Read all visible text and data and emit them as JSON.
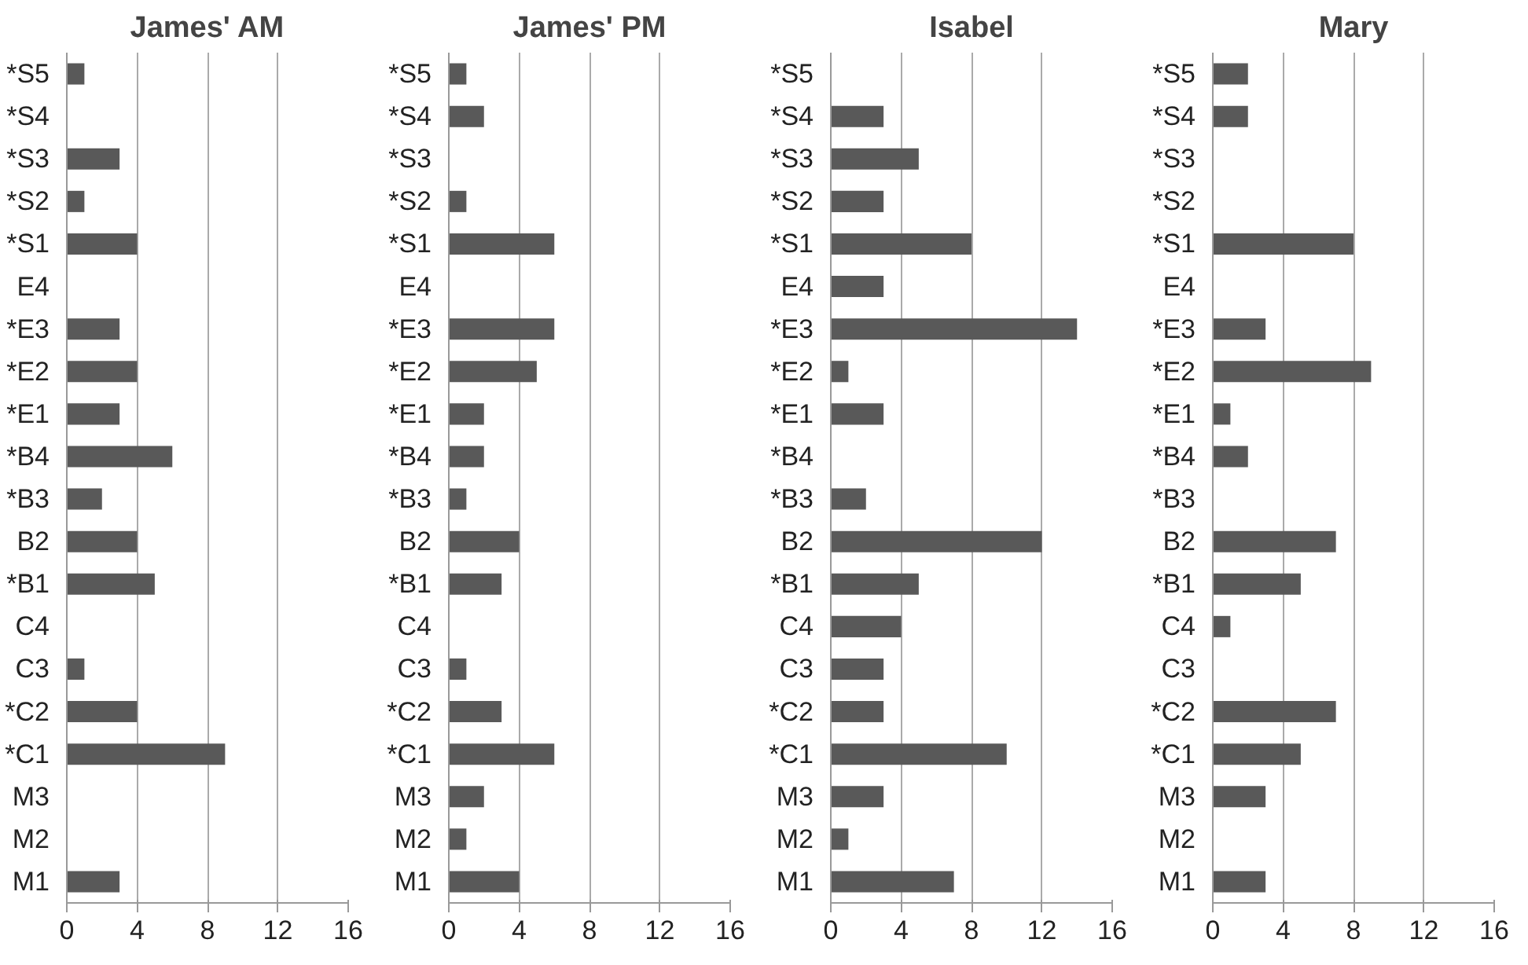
{
  "chart_data": [
    {
      "type": "bar",
      "title": "James' AM",
      "orientation": "horizontal",
      "categories": [
        "*S5",
        "*S4",
        "*S3",
        "*S2",
        "*S1",
        "E4",
        "*E3",
        "*E2",
        "*E1",
        "*B4",
        "*B3",
        "B2",
        "*B1",
        "C4",
        "C3",
        "*C2",
        "*C1",
        "M3",
        "M2",
        "M1"
      ],
      "values": [
        1,
        0,
        3,
        1,
        4,
        0,
        3,
        4,
        3,
        6,
        2,
        4,
        5,
        0,
        1,
        4,
        9,
        0,
        0,
        3
      ],
      "color": "#595959",
      "xlim": [
        0,
        16
      ],
      "xticks": [
        0,
        4,
        8,
        12,
        16
      ],
      "grid": "x"
    },
    {
      "type": "bar",
      "title": "James' PM",
      "orientation": "horizontal",
      "categories": [
        "*S5",
        "*S4",
        "*S3",
        "*S2",
        "*S1",
        "E4",
        "*E3",
        "*E2",
        "*E1",
        "*B4",
        "*B3",
        "B2",
        "*B1",
        "C4",
        "C3",
        "*C2",
        "*C1",
        "M3",
        "M2",
        "M1"
      ],
      "values": [
        1,
        2,
        0,
        1,
        6,
        0,
        6,
        5,
        2,
        2,
        1,
        4,
        3,
        0,
        1,
        3,
        6,
        2,
        1,
        4
      ],
      "color": "#595959",
      "xlim": [
        0,
        16
      ],
      "xticks": [
        0,
        4,
        8,
        12,
        16
      ],
      "grid": "x"
    },
    {
      "type": "bar",
      "title": "Isabel",
      "orientation": "horizontal",
      "categories": [
        "*S5",
        "*S4",
        "*S3",
        "*S2",
        "*S1",
        "E4",
        "*E3",
        "*E2",
        "*E1",
        "*B4",
        "*B3",
        "B2",
        "*B1",
        "C4",
        "C3",
        "*C2",
        "*C1",
        "M3",
        "M2",
        "M1"
      ],
      "values": [
        0,
        3,
        5,
        3,
        8,
        3,
        14,
        1,
        3,
        0,
        2,
        12,
        5,
        4,
        3,
        3,
        10,
        3,
        1,
        7
      ],
      "color": "#595959",
      "xlim": [
        0,
        16
      ],
      "xticks": [
        0,
        4,
        8,
        12,
        16
      ],
      "grid": "x"
    },
    {
      "type": "bar",
      "title": "Mary",
      "orientation": "horizontal",
      "categories": [
        "*S5",
        "*S4",
        "*S3",
        "*S2",
        "*S1",
        "E4",
        "*E3",
        "*E2",
        "*E1",
        "*B4",
        "*B3",
        "B2",
        "*B1",
        "C4",
        "C3",
        "*C2",
        "*C1",
        "M3",
        "M2",
        "M1"
      ],
      "values": [
        2,
        2,
        0,
        0,
        8,
        0,
        3,
        9,
        1,
        2,
        0,
        7,
        5,
        1,
        0,
        7,
        5,
        3,
        0,
        3
      ],
      "color": "#595959",
      "xlim": [
        0,
        16
      ],
      "xticks": [
        0,
        4,
        8,
        12,
        16
      ],
      "grid": "x"
    }
  ]
}
